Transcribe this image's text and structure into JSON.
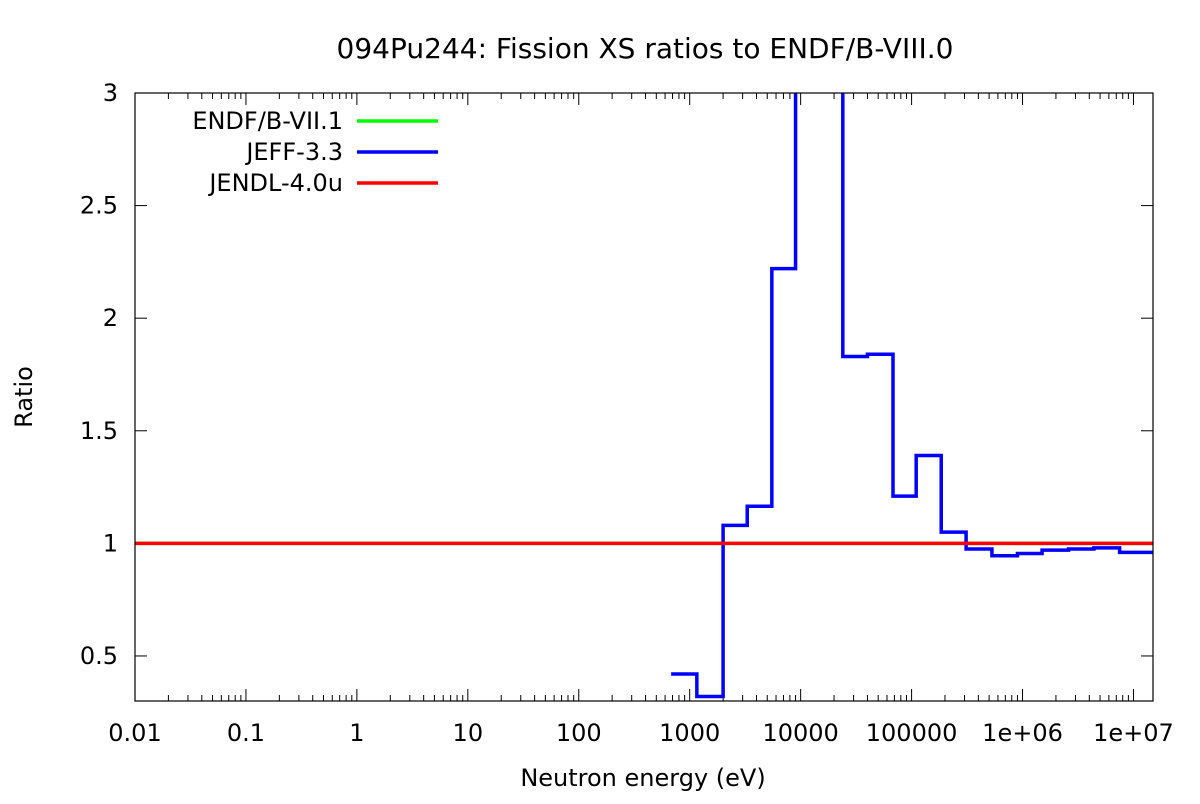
{
  "chart_data": {
    "type": "line",
    "title": "094Pu244: Fission XS ratios to ENDF/B-VIII.0",
    "xlabel": "Neutron energy (eV)",
    "ylabel": "Ratio",
    "x_scale": "log",
    "xlim": [
      0.01,
      15000000
    ],
    "ylim": [
      0.3,
      3.0
    ],
    "x_ticks": [
      {
        "value": 0.01,
        "label": "0.01"
      },
      {
        "value": 0.1,
        "label": "0.1"
      },
      {
        "value": 1,
        "label": "1"
      },
      {
        "value": 10,
        "label": "10"
      },
      {
        "value": 100,
        "label": "100"
      },
      {
        "value": 1000,
        "label": "1000"
      },
      {
        "value": 10000,
        "label": "10000"
      },
      {
        "value": 100000,
        "label": "100000"
      },
      {
        "value": 1000000,
        "label": "1e+06"
      },
      {
        "value": 10000000,
        "label": "1e+07"
      }
    ],
    "y_ticks": [
      {
        "value": 0.5,
        "label": "0.5"
      },
      {
        "value": 1.0,
        "label": "1"
      },
      {
        "value": 1.5,
        "label": "1.5"
      },
      {
        "value": 2.0,
        "label": "2"
      },
      {
        "value": 2.5,
        "label": "2.5"
      },
      {
        "value": 3.0,
        "label": "3"
      }
    ],
    "grid": false,
    "legend_position": "top-left",
    "series": [
      {
        "name": "ENDF/B-VII.1",
        "color": "#00ff00",
        "step": false,
        "x": [
          0.01,
          15000000
        ],
        "y": [
          1.0,
          1.0
        ]
      },
      {
        "name": "JEFF-3.3",
        "color": "#0000ff",
        "step": true,
        "x": [
          680,
          1160,
          2000,
          3300,
          5500,
          9000,
          24000,
          40000,
          68000,
          110000,
          185000,
          310000,
          530000,
          900000,
          1500000,
          2600000,
          4400000,
          7500000,
          15000000
        ],
        "y": [
          0.42,
          0.32,
          1.08,
          1.165,
          2.22,
          3.2,
          1.83,
          1.84,
          1.21,
          1.39,
          1.05,
          0.975,
          0.945,
          0.955,
          0.97,
          0.975,
          0.98,
          0.96,
          1.0
        ]
      },
      {
        "name": "JENDL-4.0u",
        "color": "#ff0000",
        "step": false,
        "x": [
          0.01,
          15000000
        ],
        "y": [
          1.0,
          1.0
        ]
      }
    ]
  }
}
